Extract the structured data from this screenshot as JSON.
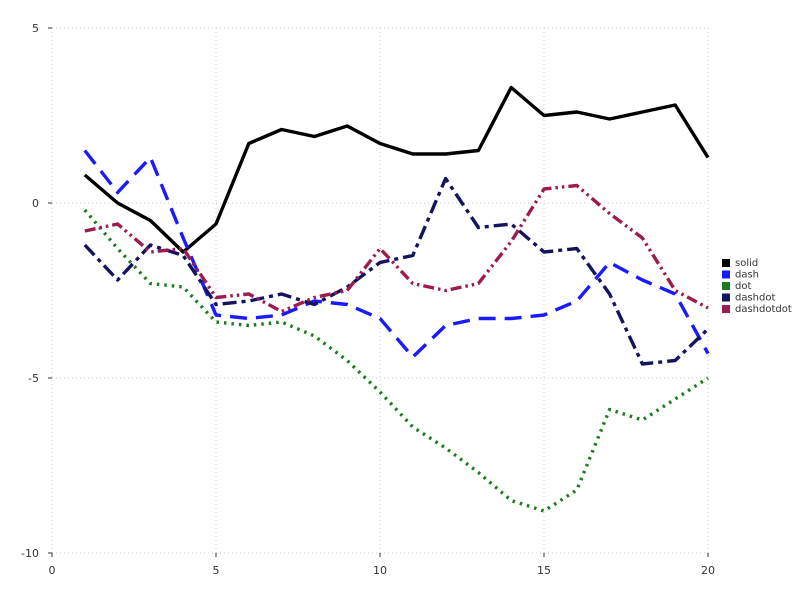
{
  "chart_data": {
    "type": "line",
    "title": "",
    "xlabel": "",
    "ylabel": "",
    "xlim": [
      0,
      20
    ],
    "ylim": [
      -10,
      5
    ],
    "xticks": [
      0,
      5,
      10,
      15,
      20
    ],
    "yticks": [
      -10,
      -5,
      0,
      5
    ],
    "grid": true,
    "grid_style": "dotted",
    "grid_color": "#c9c9c9",
    "tick_label_color": "#333333",
    "legend_position": "right-outside-middle",
    "x": [
      1,
      2,
      3,
      4,
      5,
      6,
      7,
      8,
      9,
      10,
      11,
      12,
      13,
      14,
      15,
      16,
      17,
      18,
      19,
      20
    ],
    "series": [
      {
        "name": "solid",
        "style": "solid",
        "color": "#000000",
        "values": [
          0.8,
          0.0,
          -0.5,
          -1.4,
          -0.6,
          1.7,
          2.1,
          1.9,
          2.2,
          1.7,
          1.4,
          1.4,
          1.5,
          3.3,
          2.5,
          2.6,
          2.4,
          2.6,
          2.8,
          1.3
        ]
      },
      {
        "name": "dash",
        "style": "dash",
        "color": "#1a1aff",
        "values": [
          1.5,
          0.3,
          1.3,
          -1.0,
          -3.2,
          -3.3,
          -3.2,
          -2.8,
          -2.9,
          -3.3,
          -4.4,
          -3.5,
          -3.3,
          -3.3,
          -3.2,
          -2.8,
          -1.7,
          -2.2,
          -2.6,
          -4.3
        ]
      },
      {
        "name": "dot",
        "style": "dot",
        "color": "#1e7a1e",
        "values": [
          -0.2,
          -1.3,
          -2.3,
          -2.4,
          -3.4,
          -3.5,
          -3.4,
          -3.8,
          -4.5,
          -5.4,
          -6.4,
          -7.0,
          -7.7,
          -8.5,
          -8.8,
          -8.2,
          -5.9,
          -6.2,
          -5.6,
          -5.0
        ]
      },
      {
        "name": "dashdot",
        "style": "dashdot",
        "color": "#14145e",
        "values": [
          -1.2,
          -2.2,
          -1.2,
          -1.5,
          -2.9,
          -2.8,
          -2.6,
          -2.9,
          -2.4,
          -1.7,
          -1.5,
          0.7,
          -0.7,
          -0.6,
          -1.4,
          -1.3,
          -2.6,
          -4.6,
          -4.5,
          -3.6
        ]
      },
      {
        "name": "dashdotdot",
        "style": "dashdotdot",
        "color": "#9e1b50",
        "values": [
          -0.8,
          -0.6,
          -1.4,
          -1.3,
          -2.7,
          -2.6,
          -3.1,
          -2.7,
          -2.5,
          -1.3,
          -2.3,
          -2.5,
          -2.3,
          -1.1,
          0.4,
          0.5,
          -0.3,
          -1.0,
          -2.5,
          -3.0
        ]
      }
    ]
  }
}
